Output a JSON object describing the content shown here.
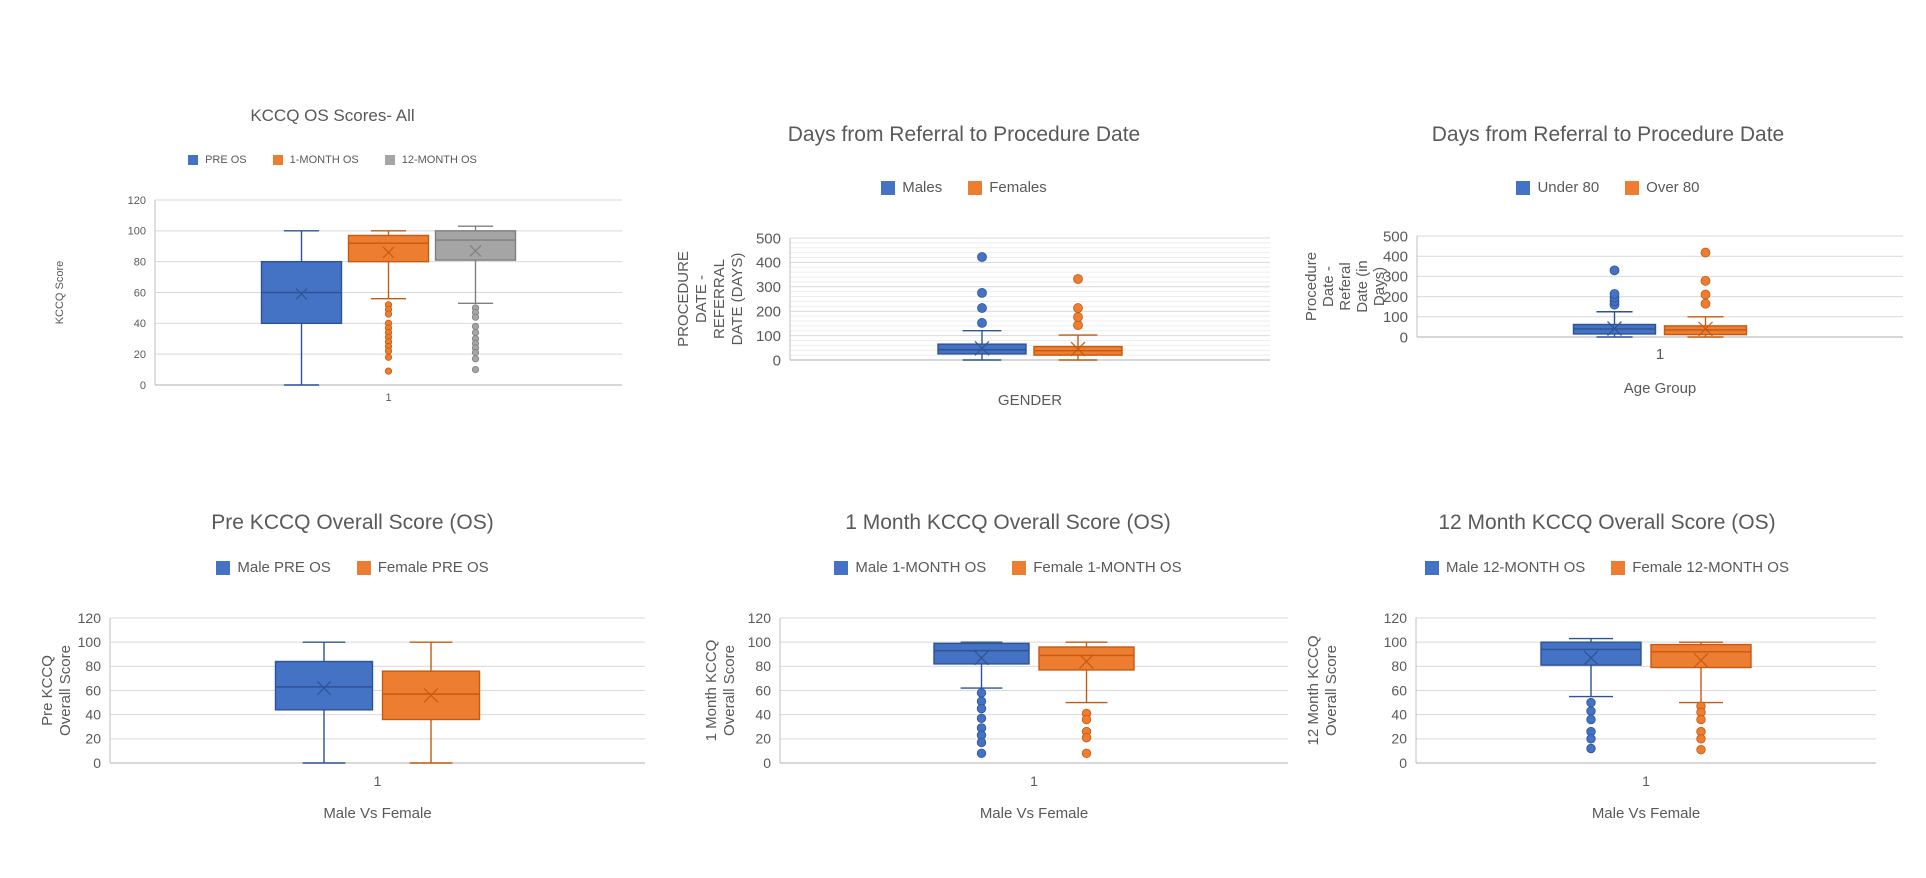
{
  "page": {
    "background": "#ffffff"
  },
  "styles": {
    "title_color": "#595959",
    "axis_text_color": "#595959",
    "gridline_color": "#D9D9D9",
    "minor_gridline_color": "#EDEDED",
    "axis_line_color": "#BFBFBF",
    "series_blue": "#4472C4",
    "series_orange": "#ED7D31",
    "series_gray": "#A5A5A5"
  },
  "chart_data": [
    {
      "type": "box",
      "title": "KCCQ OS Scores- All",
      "y_axis": {
        "label_lines": [
          "KCCQ Score"
        ],
        "min": 0,
        "max": 120,
        "major_step": 20
      },
      "x_axis": {
        "tick_label": "1",
        "title": ""
      },
      "series": [
        {
          "name": "PRE OS",
          "fill": "#4472C4",
          "border": "#2E5395",
          "low": 0,
          "q1": 40,
          "median": 60,
          "q3": 80,
          "high": 100,
          "mean": 59,
          "outliers": []
        },
        {
          "name": "1-MONTH OS",
          "fill": "#ED7D31",
          "border": "#C55A11",
          "low": 56,
          "q1": 80,
          "median": 92,
          "q3": 97,
          "high": 100,
          "mean": 86,
          "outliers": [
            52,
            49,
            46,
            40,
            37,
            34,
            31,
            28,
            25,
            22,
            18,
            9
          ]
        },
        {
          "name": "12-MONTH OS",
          "fill": "#A5A5A5",
          "border": "#7F7F7F",
          "low": 53,
          "q1": 81,
          "median": 94,
          "q3": 100,
          "high": 103,
          "mean": 87,
          "outliers": [
            50,
            47,
            44,
            38,
            34,
            30,
            27,
            24,
            21,
            17,
            10
          ]
        }
      ]
    },
    {
      "type": "box",
      "title": "Days from Referral to Procedure Date",
      "y_axis": {
        "label_lines": [
          "PROCEDURE",
          "DATE -",
          "REFERRAL",
          "DATE (DAYS)"
        ],
        "min": 0,
        "max": 500,
        "major_step": 100,
        "minor_step": 20
      },
      "x_axis": {
        "tick_label": "",
        "title": "GENDER"
      },
      "series": [
        {
          "name": "Males",
          "fill": "#4472C4",
          "border": "#2E5395",
          "low": 0,
          "q1": 25,
          "median": 42,
          "q3": 65,
          "high": 120,
          "mean": 48,
          "outliers": [
            152,
            213,
            275,
            422
          ]
        },
        {
          "name": "Females",
          "fill": "#ED7D31",
          "border": "#C55A11",
          "low": 0,
          "q1": 20,
          "median": 38,
          "q3": 55,
          "high": 102,
          "mean": 45,
          "outliers": [
            143,
            176,
            213,
            332
          ]
        }
      ]
    },
    {
      "type": "box",
      "title": "Days from Referral to Procedure Date",
      "y_axis": {
        "label_lines": [
          "Procedure",
          "Date -",
          "Referal",
          "Date (in",
          "Days)"
        ],
        "min": 0,
        "max": 500,
        "major_step": 100
      },
      "x_axis": {
        "tick_label": "1",
        "title": "Age Group"
      },
      "series": [
        {
          "name": "Under 80",
          "fill": "#4472C4",
          "border": "#2E5395",
          "low": 0,
          "q1": 15,
          "median": 40,
          "q3": 62,
          "high": 125,
          "mean": 42,
          "outliers": [
            160,
            178,
            195,
            213,
            330
          ]
        },
        {
          "name": "Over 80",
          "fill": "#ED7D31",
          "border": "#C55A11",
          "low": 0,
          "q1": 12,
          "median": 35,
          "q3": 55,
          "high": 100,
          "mean": 40,
          "outliers": [
            165,
            210,
            278,
            418
          ]
        }
      ]
    },
    {
      "type": "box",
      "title": "Pre KCCQ Overall Score (OS)",
      "y_axis": {
        "label_lines": [
          "Pre KCCQ",
          "Overall Score"
        ],
        "min": 0,
        "max": 120,
        "major_step": 20
      },
      "x_axis": {
        "tick_label": "1",
        "title": "Male Vs Female"
      },
      "series": [
        {
          "name": "Male PRE OS",
          "fill": "#4472C4",
          "border": "#2E5395",
          "low": 0,
          "q1": 44,
          "median": 63,
          "q3": 84,
          "high": 100,
          "mean": 62,
          "outliers": []
        },
        {
          "name": "Female PRE OS",
          "fill": "#ED7D31",
          "border": "#C55A11",
          "low": 0,
          "q1": 36,
          "median": 57,
          "q3": 76,
          "high": 100,
          "mean": 56,
          "outliers": []
        }
      ]
    },
    {
      "type": "box",
      "title": "1 Month KCCQ Overall Score (OS)",
      "y_axis": {
        "label_lines": [
          "1 Month KCCQ",
          "Overall Score"
        ],
        "min": 0,
        "max": 120,
        "major_step": 20
      },
      "x_axis": {
        "tick_label": "1",
        "title": "Male Vs Female"
      },
      "series": [
        {
          "name": "Male 1-MONTH OS",
          "fill": "#4472C4",
          "border": "#2E5395",
          "low": 62,
          "q1": 82,
          "median": 93,
          "q3": 99,
          "high": 100,
          "mean": 87,
          "outliers": [
            58,
            51,
            45,
            37,
            29,
            23,
            17,
            8
          ]
        },
        {
          "name": "Female 1-MONTH OS",
          "fill": "#ED7D31",
          "border": "#C55A11",
          "low": 50,
          "q1": 77,
          "median": 89,
          "q3": 96,
          "high": 100,
          "mean": 84,
          "outliers": [
            41,
            36,
            26,
            21,
            8
          ]
        }
      ]
    },
    {
      "type": "box",
      "title": "12 Month KCCQ Overall Score (OS)",
      "y_axis": {
        "label_lines": [
          "12 Month KCCQ",
          "Overall Score"
        ],
        "min": 0,
        "max": 120,
        "major_step": 20
      },
      "x_axis": {
        "tick_label": "1",
        "title": "Male Vs Female"
      },
      "series": [
        {
          "name": "Male 12-MONTH OS",
          "fill": "#4472C4",
          "border": "#2E5395",
          "low": 55,
          "q1": 81,
          "median": 94,
          "q3": 100,
          "high": 103,
          "mean": 87,
          "outliers": [
            50,
            43,
            36,
            26,
            20,
            12
          ]
        },
        {
          "name": "Female 12-MONTH OS",
          "fill": "#ED7D31",
          "border": "#C55A11",
          "low": 50,
          "q1": 79,
          "median": 92,
          "q3": 98,
          "high": 100,
          "mean": 85,
          "outliers": [
            47,
            42,
            36,
            26,
            20,
            11
          ]
        }
      ]
    }
  ]
}
